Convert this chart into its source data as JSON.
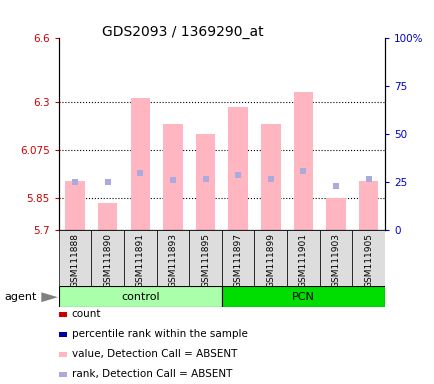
{
  "title": "GDS2093 / 1369290_at",
  "samples": [
    "GSM111888",
    "GSM111890",
    "GSM111891",
    "GSM111893",
    "GSM111895",
    "GSM111897",
    "GSM111899",
    "GSM111901",
    "GSM111903",
    "GSM111905"
  ],
  "bar_values": [
    5.93,
    5.83,
    6.32,
    6.2,
    6.15,
    6.28,
    6.2,
    6.35,
    5.85,
    5.93
  ],
  "rank_values": [
    25,
    25,
    30,
    26,
    27,
    29,
    27,
    31,
    23,
    27
  ],
  "bar_base": 5.7,
  "ylim_left": [
    5.7,
    6.6
  ],
  "ylim_right": [
    0,
    100
  ],
  "yticks_left": [
    5.7,
    5.85,
    6.075,
    6.3,
    6.6
  ],
  "ytick_labels_left": [
    "5.7",
    "5.85",
    "6.075",
    "6.3",
    "6.6"
  ],
  "yticks_right": [
    0,
    25,
    50,
    75,
    100
  ],
  "ytick_labels_right": [
    "0",
    "25",
    "50",
    "75",
    "100%"
  ],
  "hlines": [
    5.85,
    6.075,
    6.3
  ],
  "bar_color": "#FFB6C1",
  "rank_color": "#AAAADD",
  "bar_width": 0.6,
  "control_color": "#AAFFAA",
  "pcn_color": "#00DD00",
  "agent_label": "agent",
  "legend_items": [
    {
      "label": "count",
      "color": "#CC0000"
    },
    {
      "label": "percentile rank within the sample",
      "color": "#0000AA"
    },
    {
      "label": "value, Detection Call = ABSENT",
      "color": "#FFB6C1"
    },
    {
      "label": "rank, Detection Call = ABSENT",
      "color": "#AAAADD"
    }
  ],
  "bg_color": "#FFFFFF",
  "left_color": "#CC0000",
  "right_color": "#0000CC"
}
